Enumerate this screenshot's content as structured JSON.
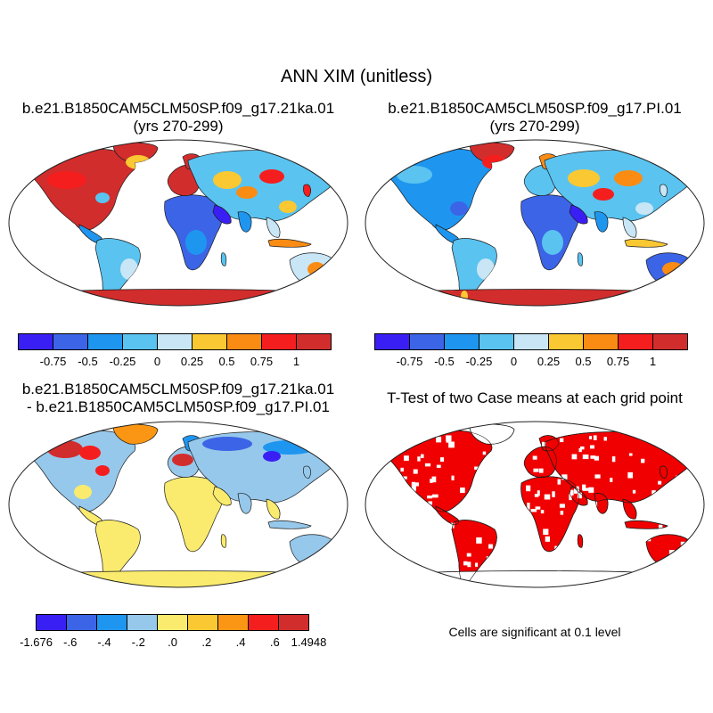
{
  "figure": {
    "title": "ANN XIM (unitless)",
    "panels": [
      {
        "title_lines": [
          "b.e21.B1850CAM5CLM50SP.f09_g17.21ka.01",
          "(yrs 270-299)"
        ]
      },
      {
        "title_lines": [
          "b.e21.B1850CAM5CLM50SP.f09_g17.PI.01",
          "(yrs 270-299)"
        ]
      },
      {
        "title_lines": [
          "b.e21.B1850CAM5CLM50SP.f09_g17.21ka.01",
          "- b.e21.B1850CAM5CLM50SP.f09_g17.PI.01"
        ]
      },
      {
        "title_lines": [
          "T-Test of two Case means at each grid point"
        ],
        "note": "Cells are significant at 0.1 level"
      }
    ]
  },
  "chart_data": [
    {
      "type": "heatmap",
      "panel": "case-21ka",
      "colorbar": {
        "colors": [
          "#3a1ff5",
          "#3c64e6",
          "#1e96f0",
          "#5ac3f0",
          "#c8e6f5",
          "#fac832",
          "#fa8c14",
          "#f51e1e",
          "#d22d2d"
        ],
        "tick_labels": [
          "-0.75",
          "-0.5",
          "-0.25",
          "0",
          "0.25",
          "0.5",
          "0.75",
          "1"
        ]
      }
    },
    {
      "type": "heatmap",
      "panel": "case-PI",
      "colorbar": {
        "colors": [
          "#3a1ff5",
          "#3c64e6",
          "#1e96f0",
          "#5ac3f0",
          "#c8e6f5",
          "#fac832",
          "#fa8c14",
          "#f51e1e",
          "#d22d2d"
        ],
        "tick_labels": [
          "-0.75",
          "-0.5",
          "-0.25",
          "0",
          "0.25",
          "0.5",
          "0.75",
          "1"
        ]
      }
    },
    {
      "type": "heatmap",
      "panel": "difference",
      "colorbar": {
        "colors": [
          "#3a1ff5",
          "#3c64e6",
          "#1e96f0",
          "#96c8eb",
          "#faeb6e",
          "#fac832",
          "#fa9614",
          "#f51e1e",
          "#d22d2d"
        ],
        "tick_labels": [
          "-1.676",
          "-.6",
          "-.4",
          "-.2",
          ".0",
          ".2",
          ".4",
          ".6",
          "1.4948"
        ]
      }
    },
    {
      "type": "heatmap",
      "panel": "t-test",
      "significant_color": "#f00000"
    }
  ]
}
